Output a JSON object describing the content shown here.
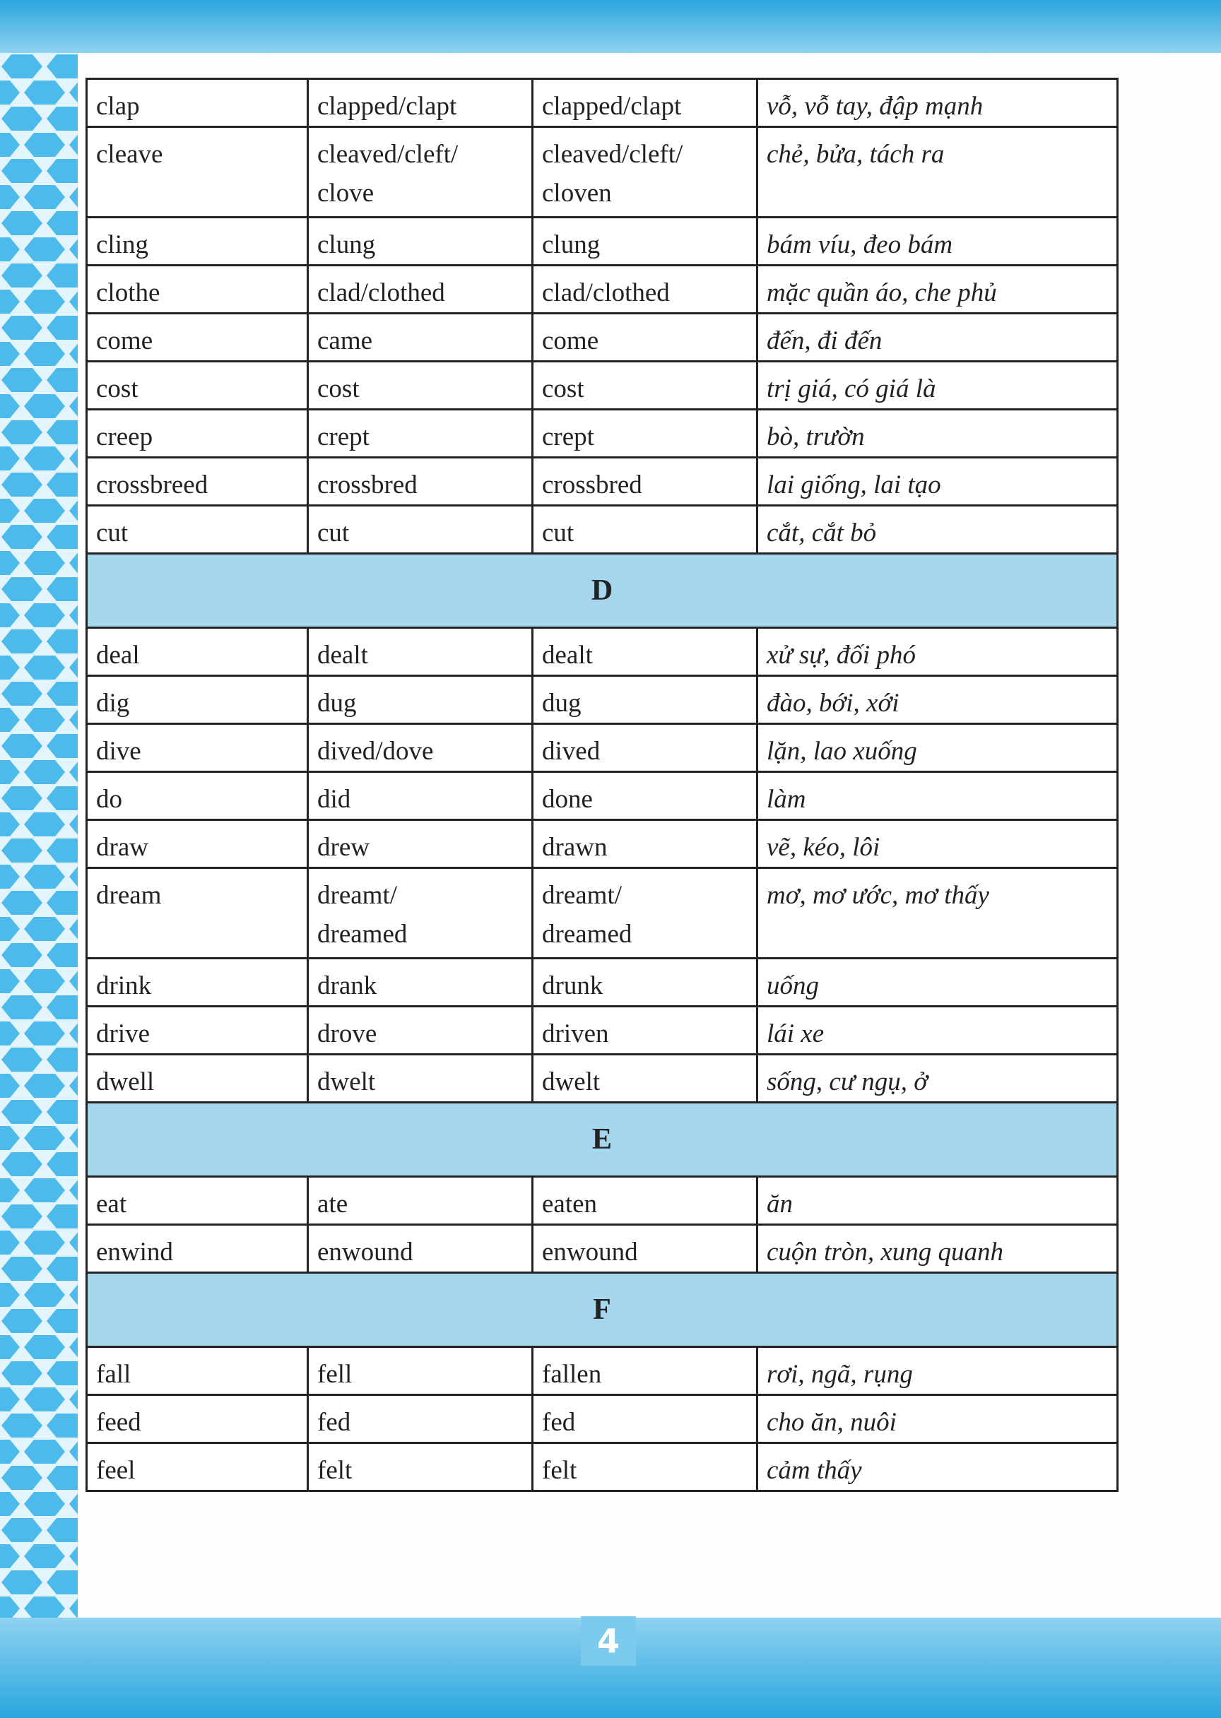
{
  "sections": [
    {
      "rows": [
        [
          "clap",
          "clapped/clapt",
          "clapped/clapt",
          "vỗ, vỗ tay, đập mạnh"
        ],
        [
          "cleave",
          "cleaved/cleft/\nclove",
          "cleaved/cleft/\ncloven",
          "chẻ, bửa, tách ra"
        ],
        [
          "cling",
          "clung",
          "clung",
          "bám víu, đeo bám"
        ],
        [
          "clothe",
          "clad/clothed",
          "clad/clothed",
          "mặc quần áo, che phủ"
        ],
        [
          "come",
          "came",
          "come",
          "đến, đi đến"
        ],
        [
          "cost",
          "cost",
          "cost",
          "trị giá, có giá là"
        ],
        [
          "creep",
          "crept",
          "crept",
          "bò, trườn"
        ],
        [
          "crossbreed",
          "crossbred",
          "crossbred",
          "lai giống, lai tạo"
        ],
        [
          "cut",
          "cut",
          "cut",
          "cắt, cắt bỏ"
        ]
      ]
    },
    {
      "heading": "D",
      "rows": [
        [
          "deal",
          "dealt",
          "dealt",
          "xử sự, đối phó"
        ],
        [
          "dig",
          "dug",
          "dug",
          "đào, bới, xới"
        ],
        [
          "dive",
          "dived/dove",
          "dived",
          "lặn, lao xuống"
        ],
        [
          "do",
          "did",
          "done",
          "làm"
        ],
        [
          "draw",
          "drew",
          "drawn",
          "vẽ, kéo, lôi"
        ],
        [
          "dream",
          "dreamt/\ndreamed",
          "dreamt/\ndreamed",
          "mơ, mơ ước, mơ thấy"
        ],
        [
          "drink",
          "drank",
          "drunk",
          "uống"
        ],
        [
          "drive",
          "drove",
          "driven",
          "lái xe"
        ],
        [
          "dwell",
          "dwelt",
          "dwelt",
          "sống, cư ngụ, ở"
        ]
      ]
    },
    {
      "heading": "E",
      "rows": [
        [
          "eat",
          "ate",
          "eaten",
          "ăn"
        ],
        [
          "enwind",
          "enwound",
          "enwound",
          "cuộn tròn, xung quanh"
        ]
      ]
    },
    {
      "heading": "F",
      "rows": [
        [
          "fall",
          "fell",
          "fallen",
          "rơi, ngã, rụng"
        ],
        [
          "feed",
          "fed",
          "fed",
          "cho ăn, nuôi"
        ],
        [
          "feel",
          "felt",
          "felt",
          "cảm thấy"
        ]
      ]
    }
  ],
  "page_number": "4"
}
